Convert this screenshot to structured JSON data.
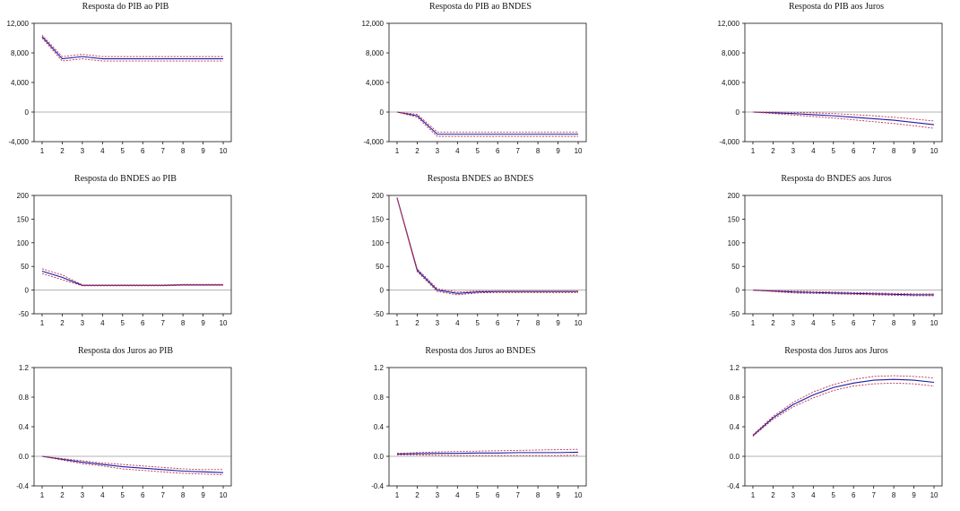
{
  "chart_data": [
    {
      "type": "line",
      "title": "Resposta do PIB ao PIB",
      "x": [
        1,
        2,
        3,
        4,
        5,
        6,
        7,
        8,
        9,
        10
      ],
      "ylim": [
        -4000,
        12000
      ],
      "yticks": [
        "12,000",
        "8,000",
        "4,000",
        "0",
        "-4,000"
      ],
      "ytick_values": [
        12000,
        8000,
        4000,
        0,
        -4000
      ],
      "series": [
        {
          "values": [
            10200,
            7200,
            7500,
            7200,
            7200,
            7200,
            7200,
            7200,
            7200,
            7200
          ],
          "role": "response"
        },
        {
          "values": [
            10400,
            7500,
            7800,
            7500,
            7500,
            7500,
            7500,
            7500,
            7500,
            7500
          ],
          "role": "upper"
        },
        {
          "values": [
            10000,
            6900,
            7200,
            6900,
            6900,
            6900,
            6900,
            6900,
            6900,
            6900
          ],
          "role": "lower"
        }
      ]
    },
    {
      "type": "line",
      "title": "Resposta do PIB ao BNDES",
      "x": [
        1,
        2,
        3,
        4,
        5,
        6,
        7,
        8,
        9,
        10
      ],
      "ylim": [
        -4000,
        12000
      ],
      "yticks": [
        "12,000",
        "8,000",
        "4,000",
        "0",
        "-4,000"
      ],
      "ytick_values": [
        12000,
        8000,
        4000,
        0,
        -4000
      ],
      "series": [
        {
          "values": [
            0,
            -500,
            -3000,
            -3000,
            -3000,
            -3000,
            -3000,
            -3000,
            -3000,
            -3000
          ],
          "role": "response"
        },
        {
          "values": [
            0,
            -300,
            -2700,
            -2700,
            -2700,
            -2700,
            -2700,
            -2700,
            -2700,
            -2700
          ],
          "role": "upper"
        },
        {
          "values": [
            0,
            -700,
            -3300,
            -3300,
            -3300,
            -3300,
            -3300,
            -3300,
            -3300,
            -3300
          ],
          "role": "lower"
        }
      ]
    },
    {
      "type": "line",
      "title": "Resposta do PIB aos Juros",
      "x": [
        1,
        2,
        3,
        4,
        5,
        6,
        7,
        8,
        9,
        10
      ],
      "ylim": [
        -4000,
        12000
      ],
      "yticks": [
        "12,000",
        "8,000",
        "4,000",
        "0",
        "-4,000"
      ],
      "ytick_values": [
        12000,
        8000,
        4000,
        0,
        -4000
      ],
      "series": [
        {
          "values": [
            0,
            -100,
            -200,
            -350,
            -500,
            -700,
            -900,
            -1100,
            -1400,
            -1700
          ],
          "role": "response"
        },
        {
          "values": [
            0,
            0,
            -50,
            -100,
            -200,
            -350,
            -500,
            -700,
            -950,
            -1200
          ],
          "role": "upper"
        },
        {
          "values": [
            0,
            -200,
            -400,
            -600,
            -800,
            -1050,
            -1300,
            -1550,
            -1850,
            -2200
          ],
          "role": "lower"
        }
      ]
    },
    {
      "type": "line",
      "title": "Resposta do BNDES ao PIB",
      "x": [
        1,
        2,
        3,
        4,
        5,
        6,
        7,
        8,
        9,
        10
      ],
      "ylim": [
        -50,
        200
      ],
      "yticks": [
        "200",
        "150",
        "100",
        "50",
        "0",
        "-50"
      ],
      "ytick_values": [
        200,
        150,
        100,
        50,
        0,
        -50
      ],
      "series": [
        {
          "values": [
            40,
            27,
            10,
            10,
            10,
            10,
            10,
            11,
            11,
            11
          ],
          "role": "response"
        },
        {
          "values": [
            45,
            32,
            11,
            11,
            11,
            11,
            11,
            12,
            12,
            12
          ],
          "role": "upper"
        },
        {
          "values": [
            35,
            22,
            9,
            9,
            9,
            9,
            9,
            10,
            10,
            10
          ],
          "role": "lower"
        }
      ]
    },
    {
      "type": "line",
      "title": "Resposta BNDES ao BNDES",
      "x": [
        1,
        2,
        3,
        4,
        5,
        6,
        7,
        8,
        9,
        10
      ],
      "ylim": [
        -50,
        200
      ],
      "yticks": [
        "200",
        "150",
        "100",
        "50",
        "0",
        "-50"
      ],
      "ytick_values": [
        200,
        150,
        100,
        50,
        0,
        -50
      ],
      "series": [
        {
          "values": [
            195,
            42,
            0,
            -7,
            -4,
            -3,
            -3,
            -3,
            -3,
            -3
          ],
          "role": "response"
        },
        {
          "values": [
            196,
            45,
            3,
            -4,
            -2,
            -2,
            -2,
            -2,
            -2,
            -2
          ],
          "role": "upper"
        },
        {
          "values": [
            194,
            39,
            -3,
            -10,
            -6,
            -5,
            -5,
            -5,
            -5,
            -5
          ],
          "role": "lower"
        }
      ]
    },
    {
      "type": "line",
      "title": "Resposta do BNDES aos Juros",
      "x": [
        1,
        2,
        3,
        4,
        5,
        6,
        7,
        8,
        9,
        10
      ],
      "ylim": [
        -50,
        200
      ],
      "yticks": [
        "200",
        "150",
        "100",
        "50",
        "0",
        "-50"
      ],
      "ytick_values": [
        200,
        150,
        100,
        50,
        0,
        -50
      ],
      "series": [
        {
          "values": [
            0,
            -2,
            -4,
            -5,
            -6,
            -7,
            -8,
            -9,
            -10,
            -10
          ],
          "role": "response"
        },
        {
          "values": [
            0,
            -1,
            -2,
            -3,
            -4,
            -5,
            -6,
            -7,
            -8,
            -8
          ],
          "role": "upper"
        },
        {
          "values": [
            0,
            -3,
            -6,
            -7,
            -8,
            -9,
            -10,
            -11,
            -12,
            -12
          ],
          "role": "lower"
        }
      ]
    },
    {
      "type": "line",
      "title": "Resposta dos Juros ao PIB",
      "x": [
        1,
        2,
        3,
        4,
        5,
        6,
        7,
        8,
        9,
        10
      ],
      "ylim": [
        -0.4,
        1.2
      ],
      "yticks": [
        "1.2",
        "0.8",
        "0.4",
        "0.0",
        "-0.4"
      ],
      "ytick_values": [
        1.2,
        0.8,
        0.4,
        0.0,
        -0.4
      ],
      "series": [
        {
          "values": [
            0,
            -0.04,
            -0.08,
            -0.11,
            -0.14,
            -0.16,
            -0.18,
            -0.2,
            -0.21,
            -0.22
          ],
          "role": "response"
        },
        {
          "values": [
            0,
            -0.03,
            -0.06,
            -0.09,
            -0.11,
            -0.13,
            -0.15,
            -0.17,
            -0.18,
            -0.18
          ],
          "role": "upper"
        },
        {
          "values": [
            0,
            -0.05,
            -0.1,
            -0.13,
            -0.17,
            -0.19,
            -0.21,
            -0.23,
            -0.24,
            -0.25
          ],
          "role": "lower"
        }
      ]
    },
    {
      "type": "line",
      "title": "Resposta dos Juros ao BNDES",
      "x": [
        1,
        2,
        3,
        4,
        5,
        6,
        7,
        8,
        9,
        10
      ],
      "ylim": [
        -0.4,
        1.2
      ],
      "yticks": [
        "1.2",
        "0.8",
        "0.4",
        "0.0",
        "-0.4"
      ],
      "ytick_values": [
        1.2,
        0.8,
        0.4,
        0.0,
        -0.4
      ],
      "series": [
        {
          "values": [
            0.03,
            0.035,
            0.04,
            0.04,
            0.045,
            0.045,
            0.05,
            0.05,
            0.05,
            0.055
          ],
          "role": "response"
        },
        {
          "values": [
            0.04,
            0.05,
            0.06,
            0.065,
            0.07,
            0.075,
            0.08,
            0.085,
            0.09,
            0.095
          ],
          "role": "upper"
        },
        {
          "values": [
            0.02,
            0.02,
            0.015,
            0.01,
            0.01,
            0.01,
            0.01,
            0.01,
            0.01,
            0.015
          ],
          "role": "lower"
        }
      ]
    },
    {
      "type": "line",
      "title": "Resposta dos Juros aos Juros",
      "x": [
        1,
        2,
        3,
        4,
        5,
        6,
        7,
        8,
        9,
        10
      ],
      "ylim": [
        -0.4,
        1.2
      ],
      "yticks": [
        "1.2",
        "0.8",
        "0.4",
        "0.0",
        "-0.4"
      ],
      "ytick_values": [
        1.2,
        0.8,
        0.4,
        0.0,
        -0.4
      ],
      "series": [
        {
          "values": [
            0.28,
            0.52,
            0.7,
            0.83,
            0.93,
            0.99,
            1.03,
            1.04,
            1.03,
            1.0
          ],
          "role": "response"
        },
        {
          "values": [
            0.29,
            0.54,
            0.73,
            0.87,
            0.97,
            1.04,
            1.08,
            1.09,
            1.08,
            1.06
          ],
          "role": "upper"
        },
        {
          "values": [
            0.27,
            0.5,
            0.67,
            0.79,
            0.89,
            0.95,
            0.98,
            0.99,
            0.98,
            0.95
          ],
          "role": "lower"
        }
      ]
    }
  ],
  "style": {
    "response_color": "#1a1aa6",
    "band_color": "#c0304a",
    "zero_line_color": "#9a9a9a",
    "axis_color": "#111111"
  }
}
